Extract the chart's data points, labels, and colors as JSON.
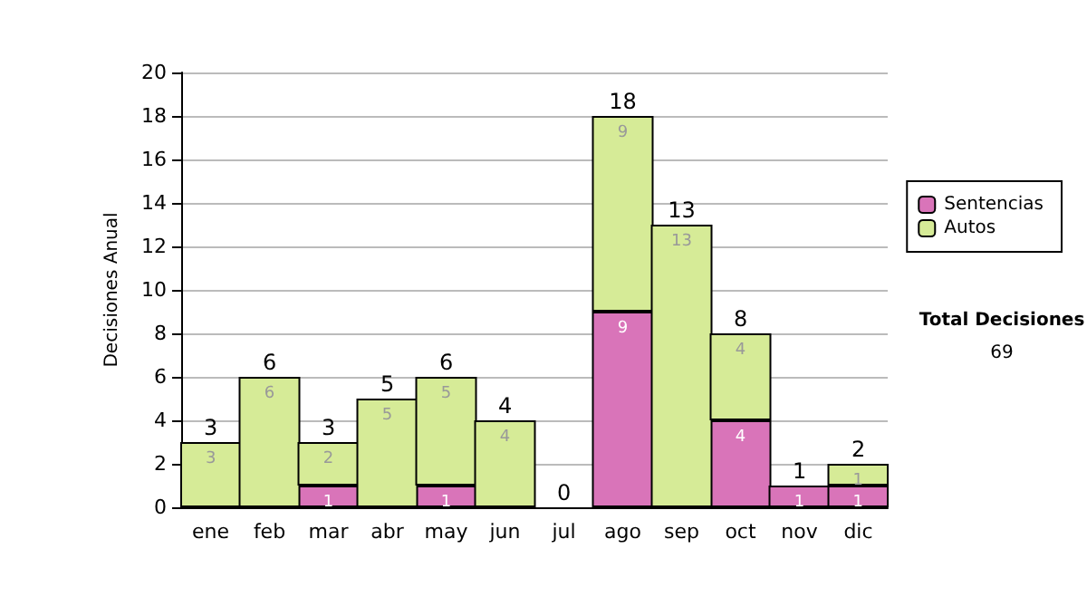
{
  "chart_data": {
    "type": "bar",
    "ylabel": "Decisiones Anual",
    "categories": [
      "ene",
      "feb",
      "mar",
      "abr",
      "may",
      "jun",
      "jul",
      "ago",
      "sep",
      "oct",
      "nov",
      "dic"
    ],
    "series": [
      {
        "name": "Sentencias",
        "color": "#d974b9",
        "values": [
          0,
          0,
          1,
          0,
          1,
          0,
          0,
          9,
          0,
          4,
          1,
          1
        ],
        "value_labels": [
          null,
          null,
          "1",
          null,
          "1",
          null,
          null,
          "9",
          null,
          "4",
          "1",
          "1"
        ]
      },
      {
        "name": "Autos",
        "color": "#d6eb97",
        "values": [
          3,
          6,
          2,
          5,
          5,
          4,
          0,
          9,
          13,
          4,
          0,
          1
        ],
        "value_labels": [
          "3",
          "6",
          "2",
          "5",
          "5",
          "4",
          null,
          "9",
          "13",
          "4",
          null,
          "1"
        ]
      }
    ],
    "stacked": true,
    "totals": [
      "3",
      "6",
      "3",
      "5",
      "6",
      "4",
      "0",
      "18",
      "13",
      "8",
      "1",
      "2"
    ],
    "ylim": [
      0,
      20
    ],
    "yticks": [
      0,
      2,
      4,
      6,
      8,
      10,
      12,
      14,
      16,
      18,
      20
    ],
    "grid": "y",
    "legend": "right",
    "annotations": [
      "Total Decisiones",
      "69"
    ]
  }
}
